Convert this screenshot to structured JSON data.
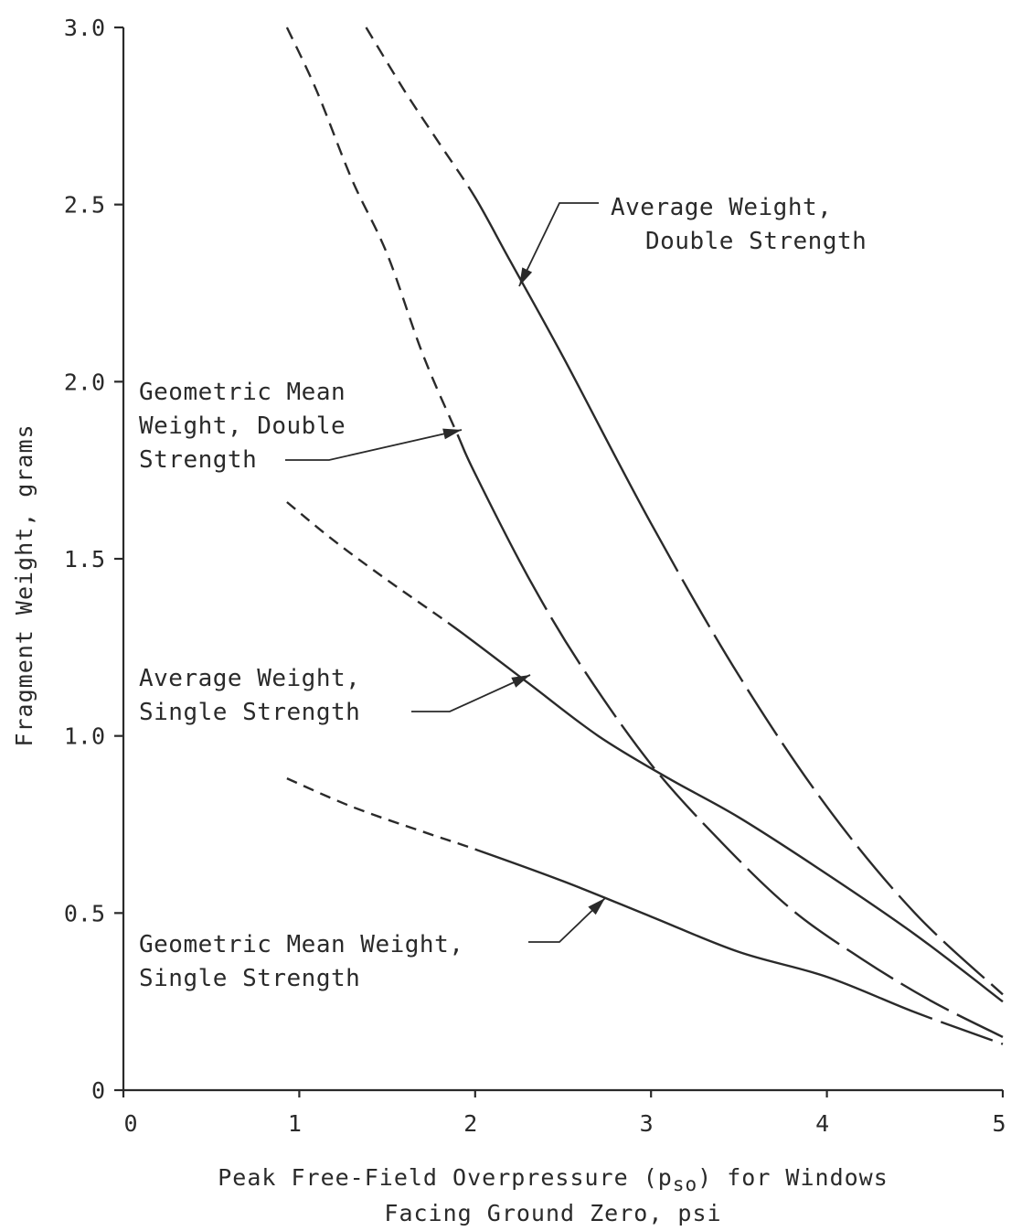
{
  "chart_data": {
    "type": "line",
    "xlabel_line1": "Peak Free-Field Overpressure (p",
    "xlabel_sub": "so",
    "xlabel_line1_end": ") for Windows",
    "xlabel_line2": "Facing Ground Zero, psi",
    "ylabel": "Fragment Weight, grams",
    "xlim": [
      0,
      5
    ],
    "ylim": [
      0,
      3.0
    ],
    "x_ticks": [
      "0",
      "1",
      "2",
      "3",
      "4",
      "5"
    ],
    "y_ticks": [
      "0",
      "0.5",
      "1.0",
      "1.5",
      "2.0",
      "2.5",
      "3.0"
    ],
    "grid": false,
    "series": [
      {
        "name": "Average Weight, Double Strength",
        "label_lines": [
          "Average Weight,",
          "Double Strength"
        ],
        "x": [
          1.38,
          1.6,
          1.8,
          2.0,
          2.2,
          2.5,
          3.0,
          3.5,
          4.0,
          4.5,
          5.0
        ],
        "y": [
          3.0,
          2.82,
          2.67,
          2.52,
          2.34,
          2.07,
          1.6,
          1.17,
          0.8,
          0.5,
          0.27
        ]
      },
      {
        "name": "Geometric Mean Weight, Double Strength",
        "label_lines": [
          "Geometric Mean",
          "Weight, Double",
          "Strength"
        ],
        "x": [
          0.93,
          1.1,
          1.3,
          1.5,
          1.7,
          1.9,
          2.0,
          2.3,
          2.6,
          3.0,
          3.4,
          3.8,
          4.2,
          4.6,
          5.0
        ],
        "y": [
          3.0,
          2.82,
          2.57,
          2.36,
          2.08,
          1.85,
          1.74,
          1.45,
          1.2,
          0.92,
          0.7,
          0.51,
          0.37,
          0.25,
          0.15
        ]
      },
      {
        "name": "Average Weight, Single Strength",
        "label_lines": [
          "Average Weight,",
          "Single Strength"
        ],
        "x": [
          0.93,
          1.2,
          1.5,
          1.9,
          2.3,
          2.7,
          3.1,
          3.5,
          4.0,
          4.5,
          5.0
        ],
        "y": [
          1.66,
          1.55,
          1.44,
          1.3,
          1.15,
          1.0,
          0.88,
          0.77,
          0.61,
          0.44,
          0.25
        ]
      },
      {
        "name": "Geometric Mean Weight, Single Strength",
        "label_lines": [
          "Geometric Mean Weight,",
          "Single Strength"
        ],
        "x": [
          0.93,
          1.3,
          1.7,
          2.0,
          2.5,
          3.0,
          3.5,
          4.0,
          4.5,
          5.0
        ],
        "y": [
          0.88,
          0.8,
          0.73,
          0.68,
          0.59,
          0.49,
          0.39,
          0.32,
          0.22,
          0.13
        ]
      }
    ]
  }
}
